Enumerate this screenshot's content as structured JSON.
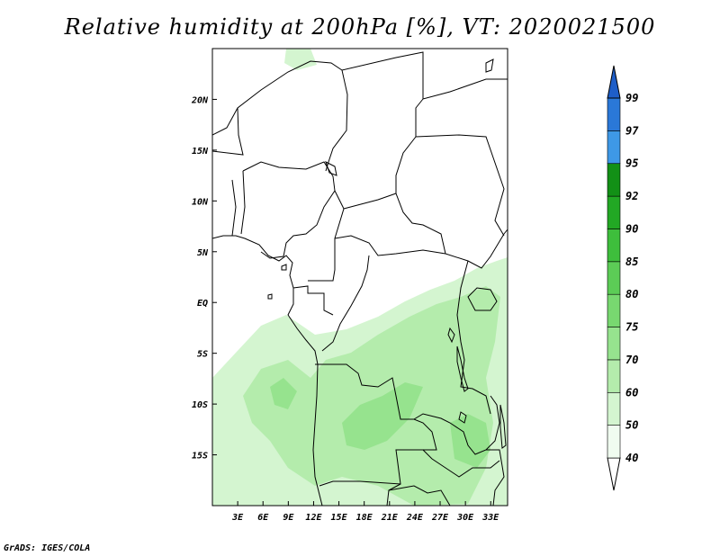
{
  "title": "Relative humidity at 200hPa [%], VT: 2020021500",
  "footer": "GrADS: IGES/COLA",
  "map": {
    "lon_range": [
      0,
      35
    ],
    "lat_range": [
      -20,
      25
    ],
    "lon_ticks": [
      {
        "value": 3,
        "label": "3E"
      },
      {
        "value": 6,
        "label": "6E"
      },
      {
        "value": 9,
        "label": "9E"
      },
      {
        "value": 12,
        "label": "12E"
      },
      {
        "value": 15,
        "label": "15E"
      },
      {
        "value": 18,
        "label": "18E"
      },
      {
        "value": 21,
        "label": "21E"
      },
      {
        "value": 24,
        "label": "24E"
      },
      {
        "value": 27,
        "label": "27E"
      },
      {
        "value": 30,
        "label": "30E"
      },
      {
        "value": 33,
        "label": "33E"
      }
    ],
    "lat_ticks": [
      {
        "value": 20,
        "label": "20N"
      },
      {
        "value": 15,
        "label": "15N"
      },
      {
        "value": 10,
        "label": "10N"
      },
      {
        "value": 5,
        "label": "5N"
      },
      {
        "value": 0,
        "label": "EQ"
      },
      {
        "value": -5,
        "label": "5S"
      },
      {
        "value": -10,
        "label": "10S"
      },
      {
        "value": -15,
        "label": "15S"
      }
    ]
  },
  "colorbar": {
    "labels": [
      "40",
      "50",
      "60",
      "70",
      "75",
      "80",
      "85",
      "90",
      "92",
      "95",
      "97",
      "99"
    ],
    "colors": [
      "#f0fcf0",
      "#d4f5d0",
      "#b4ecac",
      "#96e38e",
      "#78d870",
      "#5ccc56",
      "#3ebe3c",
      "#22a824",
      "#129016",
      "#3e98e6",
      "#2a78d8",
      "#1e5ec8"
    ],
    "top_color": "#1e5ec8",
    "bottom_color": "#ffffff"
  },
  "colors": {
    "border_line": "#000000",
    "humidity_light": "#d4f5d0",
    "humidity_mid": "#b4ecac",
    "humidity_high": "#96e38e"
  }
}
